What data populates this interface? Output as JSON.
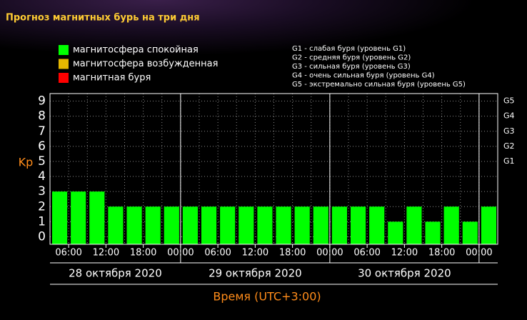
{
  "chart_data": {
    "type": "bar",
    "title": "Прогноз магнитных бурь на три дня",
    "legend": [
      {
        "label": "магнитосфера спокойная",
        "color": "#00ff00"
      },
      {
        "label": "магнитосфера возбужденная",
        "color": "#e6b800"
      },
      {
        "label": "магнитная буря",
        "color": "#ff0000"
      }
    ],
    "notes": [
      "G1 - слабая буря (уровень G1)",
      "G2 - средняя буря (уровень G2)",
      "G3 - сильная буря (уровень G3)",
      "G4 - очень сильная буря (уровень G4)",
      "G5 - экстремально сильная буря (уровень G5)"
    ],
    "y_label": "Kp",
    "x_label": "Время (UTC+3:00)",
    "categories": [
      null,
      null,
      null,
      null,
      null,
      null,
      null,
      null,
      null,
      null,
      null,
      null,
      null,
      null,
      null,
      null,
      null,
      null,
      null,
      null,
      null,
      null,
      null,
      null
    ],
    "values": [
      3,
      3,
      3,
      2,
      2,
      2,
      2,
      2,
      2,
      2,
      2,
      2,
      2,
      2,
      2,
      2,
      2,
      2,
      1,
      2,
      1,
      2,
      1,
      2
    ],
    "color": "#00ff00",
    "xtick_labels": [
      "06:00",
      "12:00",
      "18:00",
      "00:00",
      "06:00",
      "12:00",
      "18:00",
      "00:00",
      "06:00",
      "12:00",
      "18:00",
      "00:00"
    ],
    "days": [
      "28 октября 2020",
      "29 октября 2020",
      "30 октября 2020"
    ],
    "ylim": [
      -0.5,
      9.5
    ],
    "yticks": [
      0,
      1,
      2,
      3,
      4,
      5,
      6,
      7,
      8,
      9
    ],
    "y2lim": [
      -0.5,
      9.5
    ],
    "y2ticks": [
      {
        "value": 5,
        "label": "G1"
      },
      {
        "value": 6,
        "label": "G2"
      },
      {
        "value": 7,
        "label": "G3"
      },
      {
        "value": 8,
        "label": "G4"
      },
      {
        "value": 9,
        "label": "G5"
      }
    ],
    "grid": true
  }
}
